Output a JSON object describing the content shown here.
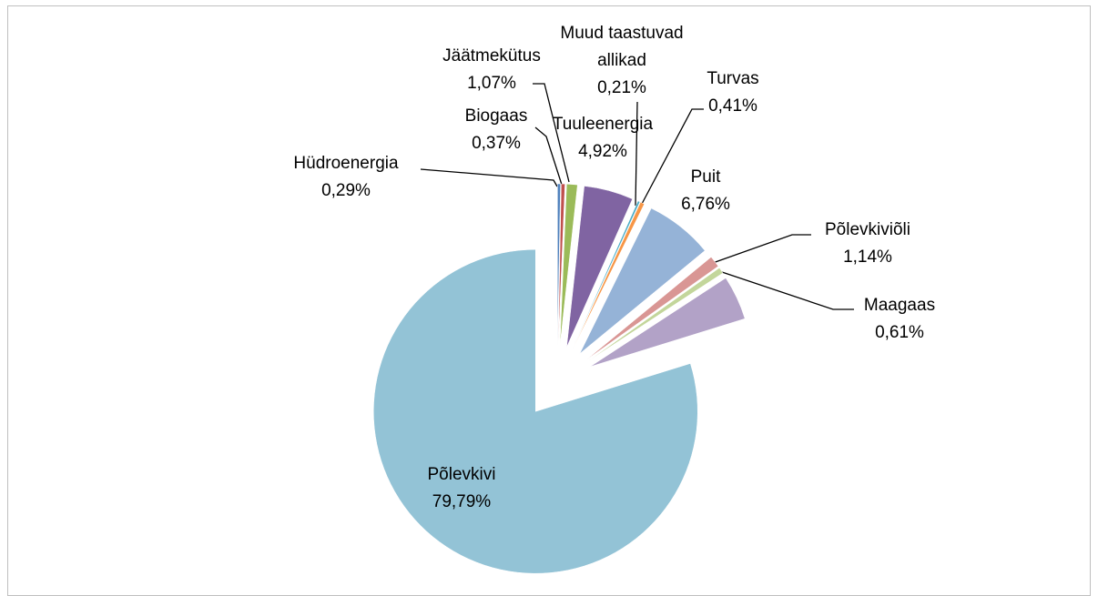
{
  "chart_data": {
    "type": "pie",
    "categories": [
      "Hüdroenergia",
      "Biogaas",
      "Jäätmekütus",
      "Tuuleenergia",
      "Muud taastuvad allikad",
      "Turvas",
      "Puit",
      "Põlevkiviõli",
      "Maagaas",
      null,
      "Põlevkivi"
    ],
    "values": [
      0.29,
      0.37,
      1.07,
      4.92,
      0.21,
      0.41,
      6.76,
      1.14,
      0.61,
      4.43,
      79.79
    ],
    "value_labels": [
      "0,29%",
      "0,37%",
      "1,07%",
      "4,92%",
      "0,21%",
      "0,41%",
      "6,76%",
      "1,14%",
      "0,61%",
      null,
      "79,79%"
    ],
    "colors": [
      "#4f81bd",
      "#c0504d",
      "#9bbb59",
      "#8064a2",
      "#4bacc6",
      "#f79646",
      "#95b3d7",
      "#d99694",
      "#c3d69b",
      "#b2a2c7",
      "#93c3d6"
    ]
  }
}
